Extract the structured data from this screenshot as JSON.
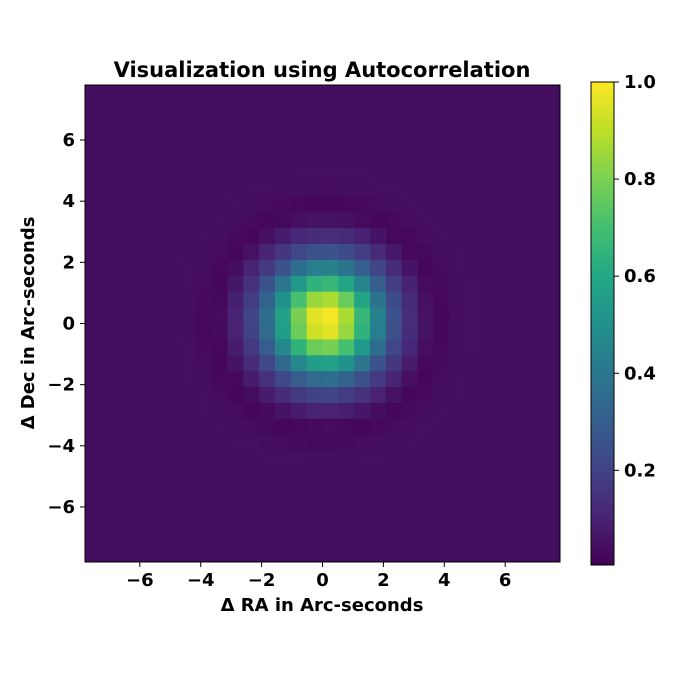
{
  "chart_data": {
    "type": "heatmap",
    "title": "Visualization using Autocorrelation",
    "xlabel": "Δ RA in Arc-seconds",
    "ylabel": "Δ Dec in Arc-seconds",
    "xlim": [
      -7.8,
      7.8
    ],
    "ylim": [
      -7.8,
      7.8
    ],
    "xticks": [
      -6,
      -4,
      -2,
      0,
      2,
      4,
      6
    ],
    "yticks": [
      -6,
      -4,
      -2,
      0,
      2,
      4,
      6
    ],
    "xtick_labels": [
      "−6",
      "−4",
      "−2",
      "0",
      "2",
      "4",
      "6"
    ],
    "ytick_labels": [
      "−6",
      "−4",
      "−2",
      "0",
      "2",
      "4",
      "6"
    ],
    "grid": false,
    "colormap": "viridis",
    "colorbar": {
      "range": [
        0.005,
        1.0
      ],
      "ticks": [
        0.2,
        0.4,
        0.6,
        0.8,
        1.0
      ],
      "tick_labels": [
        "0.2",
        "0.4",
        "0.6",
        "0.8",
        "1.0"
      ]
    },
    "pixel_size_arcsec": 0.52,
    "peak": {
      "x": 0.1,
      "y": 0.1,
      "value": 1.0
    },
    "profile": "central autocorrelation peak (sigma ≈ 1.3 arcsec) surrounded by a faint dark ring at radius ≈ 3.6 arcsec; background ≈ 0.04"
  }
}
